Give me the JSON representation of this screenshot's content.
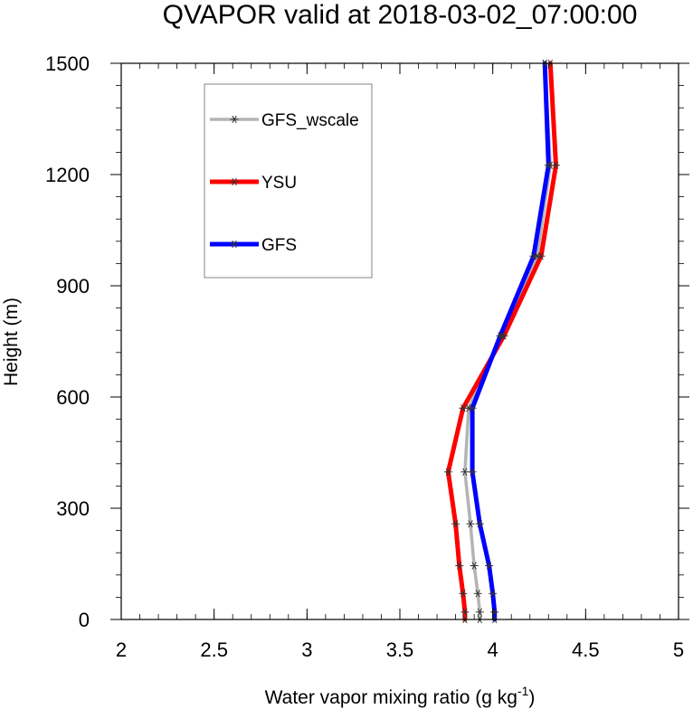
{
  "chart_data": {
    "type": "line",
    "title": "QVAPOR valid at 2018-03-02_07:00:00",
    "xlabel_main": "Water vapor mixing ratio (g kg",
    "xlabel_sup": "-1",
    "xlabel_close": ")",
    "ylabel": "Height (m)",
    "xlim": [
      2,
      5
    ],
    "ylim": [
      0,
      1500
    ],
    "x_ticks": [
      2,
      2.5,
      3,
      3.5,
      4,
      4.5,
      5
    ],
    "x_tick_labels": [
      "2",
      "2.5",
      "3",
      "3.5",
      "4",
      "4.5",
      "5"
    ],
    "y_ticks": [
      0,
      300,
      600,
      900,
      1200,
      1500
    ],
    "y_tick_labels": [
      "0",
      "300",
      "600",
      "900",
      "1200",
      "1500"
    ],
    "grid": false,
    "legend_position": "top-left",
    "series": [
      {
        "name": "GFS_wscale",
        "color": "#b4b4b4",
        "points": [
          {
            "x": 3.93,
            "y": 0
          },
          {
            "x": 3.93,
            "y": 20
          },
          {
            "x": 3.92,
            "y": 70
          },
          {
            "x": 3.9,
            "y": 145
          },
          {
            "x": 3.88,
            "y": 258
          },
          {
            "x": 3.85,
            "y": 398
          },
          {
            "x": 3.87,
            "y": 570
          },
          {
            "x": 4.05,
            "y": 765
          },
          {
            "x": 4.24,
            "y": 980
          },
          {
            "x": 4.31,
            "y": 1225
          },
          {
            "x": 4.28,
            "y": 1500
          }
        ]
      },
      {
        "name": "YSU",
        "color": "#ff0000",
        "points": [
          {
            "x": 3.85,
            "y": 0
          },
          {
            "x": 3.85,
            "y": 20
          },
          {
            "x": 3.84,
            "y": 70
          },
          {
            "x": 3.82,
            "y": 145
          },
          {
            "x": 3.8,
            "y": 258
          },
          {
            "x": 3.76,
            "y": 398
          },
          {
            "x": 3.84,
            "y": 570
          },
          {
            "x": 4.06,
            "y": 765
          },
          {
            "x": 4.26,
            "y": 980
          },
          {
            "x": 4.34,
            "y": 1225
          },
          {
            "x": 4.31,
            "y": 1500
          }
        ]
      },
      {
        "name": "GFS",
        "color": "#0000ff",
        "points": [
          {
            "x": 4.01,
            "y": 0
          },
          {
            "x": 4.01,
            "y": 20
          },
          {
            "x": 4.0,
            "y": 70
          },
          {
            "x": 3.98,
            "y": 145
          },
          {
            "x": 3.93,
            "y": 258
          },
          {
            "x": 3.89,
            "y": 398
          },
          {
            "x": 3.89,
            "y": 570
          },
          {
            "x": 4.04,
            "y": 765
          },
          {
            "x": 4.22,
            "y": 980
          },
          {
            "x": 4.3,
            "y": 1225
          },
          {
            "x": 4.28,
            "y": 1500
          }
        ]
      }
    ]
  }
}
